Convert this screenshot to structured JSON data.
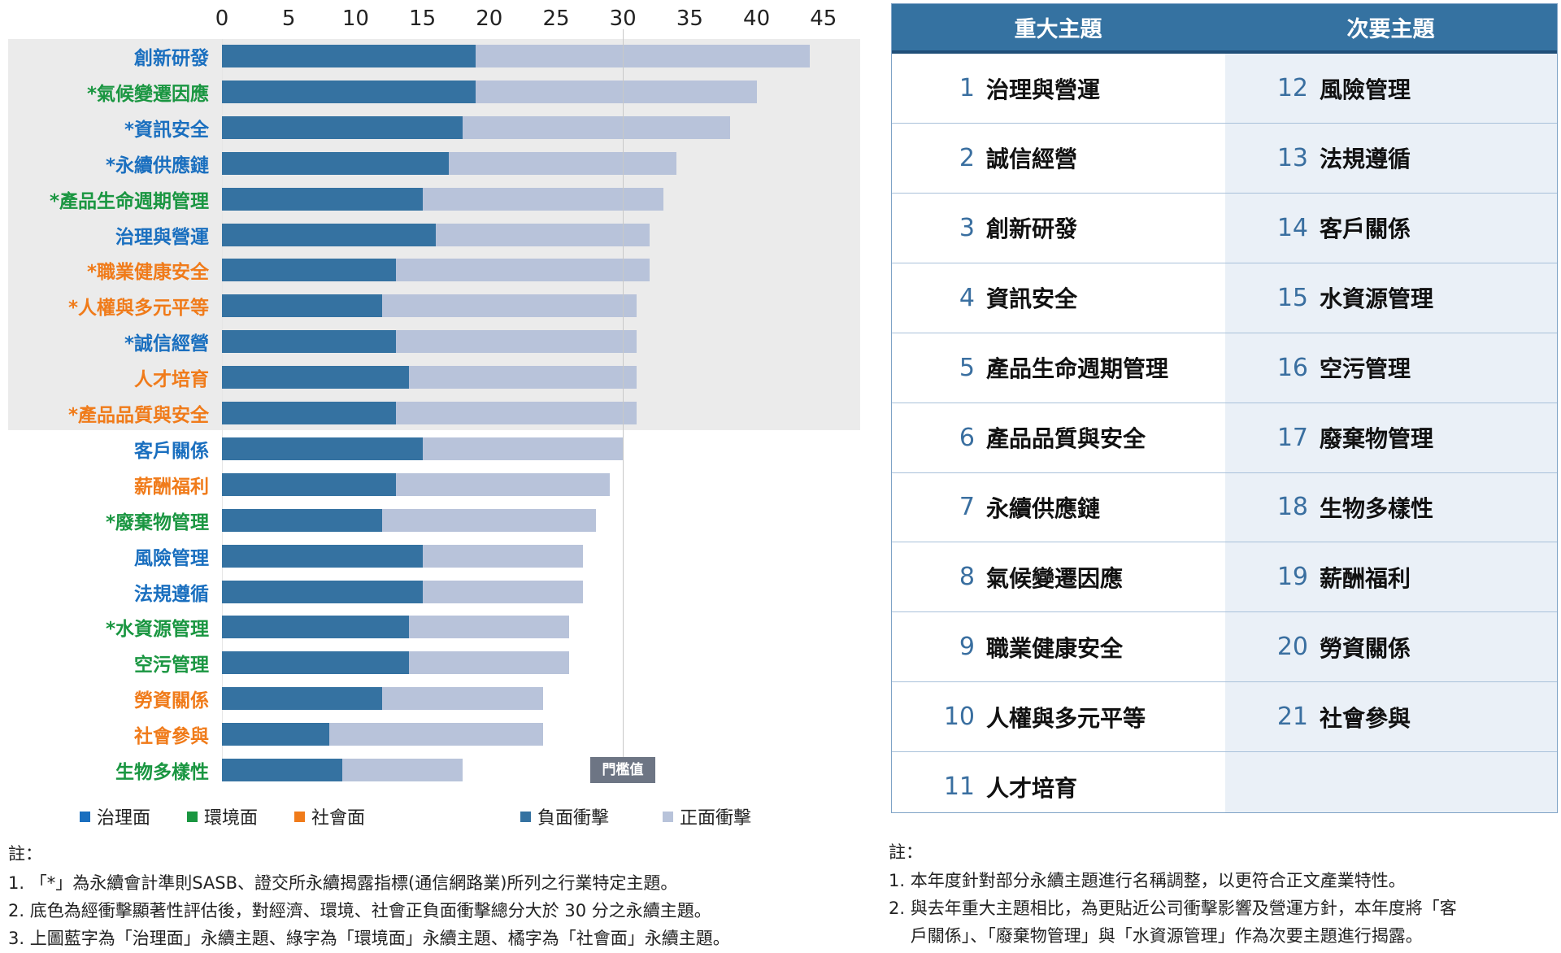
{
  "chart_data": {
    "type": "bar",
    "orientation": "horizontal",
    "stacked": true,
    "xlim": [
      0,
      45
    ],
    "x_ticks": [
      "0",
      "5",
      "10",
      "15",
      "20",
      "25",
      "30",
      "35",
      "40",
      "45"
    ],
    "threshold": {
      "value": 30,
      "label": "門檻值"
    },
    "highlight_note": "total > 30",
    "categories": [
      {
        "label": "創新研發",
        "dimension": "gov"
      },
      {
        "label": "*氣候變遷因應",
        "dimension": "env"
      },
      {
        "label": "*資訊安全",
        "dimension": "gov"
      },
      {
        "label": "*永續供應鏈",
        "dimension": "gov"
      },
      {
        "label": "*產品生命週期管理",
        "dimension": "env"
      },
      {
        "label": "治理與營運",
        "dimension": "gov"
      },
      {
        "label": "*職業健康安全",
        "dimension": "soc"
      },
      {
        "label": "*人權與多元平等",
        "dimension": "soc"
      },
      {
        "label": "*誠信經營",
        "dimension": "gov"
      },
      {
        "label": "人才培育",
        "dimension": "soc"
      },
      {
        "label": "*產品品質與安全",
        "dimension": "soc"
      },
      {
        "label": "客戶關係",
        "dimension": "gov"
      },
      {
        "label": "薪酬福利",
        "dimension": "soc"
      },
      {
        "label": "*廢棄物管理",
        "dimension": "env"
      },
      {
        "label": "風險管理",
        "dimension": "gov"
      },
      {
        "label": "法規遵循",
        "dimension": "gov"
      },
      {
        "label": "*水資源管理",
        "dimension": "env"
      },
      {
        "label": "空污管理",
        "dimension": "env"
      },
      {
        "label": "勞資關係",
        "dimension": "soc"
      },
      {
        "label": "社會參與",
        "dimension": "soc"
      },
      {
        "label": "生物多樣性",
        "dimension": "env"
      }
    ],
    "series": [
      {
        "name": "負面衝擊",
        "color": "#3572a1",
        "values": [
          19,
          19,
          18,
          17,
          15,
          16,
          13,
          12,
          13,
          14,
          13,
          15,
          13,
          12,
          15,
          15,
          14,
          14,
          12,
          8,
          9
        ]
      },
      {
        "name": "正面衝擊",
        "color": "#b8c3da",
        "values": [
          25,
          21,
          20,
          17,
          18,
          16,
          19,
          19,
          18,
          17,
          18,
          15,
          16,
          16,
          12,
          12,
          12,
          12,
          12,
          16,
          9
        ]
      }
    ],
    "highlighted_count": 11,
    "dimension_colors": {
      "gov": "#1a6fbf",
      "env": "#1a9641",
      "soc": "#f07b1a"
    },
    "legend_dimensions": [
      {
        "label": "治理面",
        "color": "#1a6fbf"
      },
      {
        "label": "環境面",
        "color": "#1a9641"
      },
      {
        "label": "社會面",
        "color": "#f07b1a"
      }
    ],
    "legend_series": [
      {
        "label": "負面衝擊",
        "color": "#3572a1"
      },
      {
        "label": "正面衝擊",
        "color": "#b8c3da"
      }
    ]
  },
  "left_notes": {
    "title": "註：",
    "lines": [
      "1. 「*」為永續會計準則SASB、證交所永續揭露指標(通信網路業)所列之行業特定主題。",
      "2. 底色為經衝擊顯著性評估後，對經濟、環境、社會正負面衝擊總分大於 30 分之永續主題。",
      "3. 上圖藍字為「治理面」永續主題、綠字為「環境面」永續主題、橘字為「社會面」永續主題。"
    ]
  },
  "table": {
    "headers": [
      "重大主題",
      "次要主題"
    ],
    "major": [
      {
        "num": "1",
        "name": "治理與營運"
      },
      {
        "num": "2",
        "name": "誠信經營"
      },
      {
        "num": "3",
        "name": "創新研發"
      },
      {
        "num": "4",
        "name": "資訊安全"
      },
      {
        "num": "5",
        "name": "產品生命週期管理"
      },
      {
        "num": "6",
        "name": "產品品質與安全"
      },
      {
        "num": "7",
        "name": "永續供應鏈"
      },
      {
        "num": "8",
        "name": "氣候變遷因應"
      },
      {
        "num": "9",
        "name": "職業健康安全"
      },
      {
        "num": "10",
        "name": "人權與多元平等"
      },
      {
        "num": "11",
        "name": "人才培育"
      }
    ],
    "minor": [
      {
        "num": "12",
        "name": "風險管理"
      },
      {
        "num": "13",
        "name": "法規遵循"
      },
      {
        "num": "14",
        "name": "客戶關係"
      },
      {
        "num": "15",
        "name": "水資源管理"
      },
      {
        "num": "16",
        "name": "空污管理"
      },
      {
        "num": "17",
        "name": "廢棄物管理"
      },
      {
        "num": "18",
        "name": "生物多樣性"
      },
      {
        "num": "19",
        "name": "薪酬福利"
      },
      {
        "num": "20",
        "name": "勞資關係"
      },
      {
        "num": "21",
        "name": "社會參與"
      }
    ]
  },
  "right_notes": {
    "title": "註：",
    "lines": [
      "1. 本年度針對部分永續主題進行名稱調整，以更符合正文產業特性。",
      "2. 與去年重大主題相比，為更貼近公司衝擊影響及營運方針，本年度將「客",
      "    戶關係」、「廢棄物管理」與「水資源管理」作為次要主題進行揭露。"
    ]
  }
}
